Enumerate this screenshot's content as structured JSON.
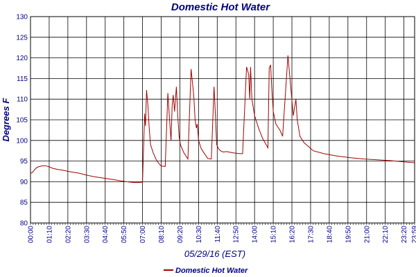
{
  "chart_data": {
    "type": "line",
    "title": "Domestic Hot Water",
    "ylabel": "Degrees F",
    "xlabel": "05/29/16 (EST)",
    "ylim": [
      80,
      130
    ],
    "yticks": [
      80,
      85,
      90,
      95,
      100,
      105,
      110,
      115,
      120,
      125,
      130
    ],
    "xlim_minutes": [
      0,
      1440
    ],
    "xticks": [
      "00:00",
      "01:10",
      "02:20",
      "03:30",
      "04:40",
      "05:50",
      "07:00",
      "08:10",
      "09:20",
      "10:30",
      "11:40",
      "12:50",
      "14:00",
      "15:10",
      "16:20",
      "17:30",
      "18:40",
      "19:50",
      "21:00",
      "22:10",
      "23:20",
      "23:59"
    ],
    "grid": true,
    "legend": "bottom",
    "series": [
      {
        "name": "Domestic Hot Water",
        "color": "#a00000",
        "x": [
          0,
          8,
          15,
          25,
          40,
          55,
          70,
          85,
          100,
          120,
          150,
          180,
          210,
          240,
          270,
          300,
          330,
          360,
          390,
          405,
          420,
          425,
          428,
          431,
          435,
          440,
          445,
          450,
          460,
          470,
          480,
          490,
          505,
          515,
          522,
          527,
          531,
          535,
          540,
          547,
          552,
          557,
          562,
          575,
          590,
          602,
          612,
          617,
          622,
          625,
          630,
          640,
          650,
          665,
          678,
          688,
          693,
          698,
          705,
          712,
          722,
          735,
          760,
          785,
          795,
          810,
          818,
          822,
          825,
          830,
          840,
          855,
          870,
          885,
          890,
          895,
          900,
          905,
          910,
          920,
          935,
          945,
          965,
          985,
          995,
          1000,
          1010,
          1025,
          1060,
          1100,
          1150,
          1200,
          1250,
          1300,
          1350,
          1400,
          1440
        ],
        "y": [
          92.0,
          92.3,
          92.9,
          93.5,
          93.8,
          93.9,
          93.6,
          93.2,
          93.0,
          92.8,
          92.4,
          92.1,
          91.6,
          91.2,
          90.9,
          90.6,
          90.3,
          90.0,
          89.8,
          89.8,
          89.9,
          100.5,
          106.5,
          103.5,
          112.2,
          108.5,
          103.0,
          99.0,
          97.0,
          95.5,
          94.5,
          93.8,
          93.7,
          111.5,
          104.5,
          100.0,
          108.5,
          111.0,
          107.0,
          113.0,
          106.0,
          101.0,
          99.0,
          97.0,
          95.5,
          117.3,
          111.0,
          105.0,
          103.0,
          104.0,
          100.0,
          98.0,
          97.0,
          95.6,
          95.5,
          113.0,
          106.5,
          99.0,
          98.0,
          97.5,
          97.2,
          97.3,
          97.0,
          96.8,
          96.8,
          117.8,
          116.0,
          110.0,
          117.8,
          110.0,
          106.0,
          103.0,
          100.5,
          98.8,
          98.2,
          117.5,
          118.3,
          112.0,
          107.0,
          104.0,
          102.5,
          101.0,
          120.6,
          106.0,
          110.0,
          105.0,
          101.0,
          99.5,
          97.5,
          96.8,
          96.2,
          95.8,
          95.5,
          95.3,
          95.1,
          94.8,
          94.6
        ]
      }
    ]
  }
}
